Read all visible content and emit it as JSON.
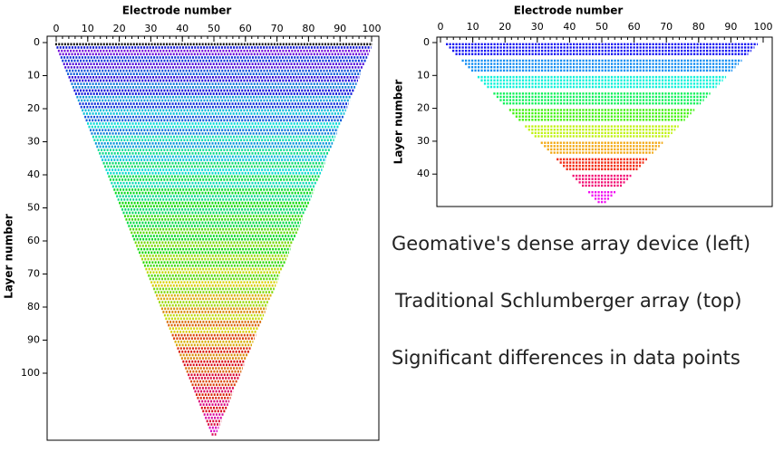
{
  "chart_data": [
    {
      "type": "pseudosection",
      "x_label": "Electrode number",
      "y_label": "Layer number",
      "xlim": [
        0,
        100
      ],
      "ylim": [
        0,
        120
      ],
      "xticks": [
        0,
        10,
        20,
        30,
        40,
        50,
        60,
        70,
        80,
        90,
        100
      ],
      "yticks": [
        0,
        10,
        20,
        30,
        40,
        50,
        60,
        70,
        80,
        90,
        100
      ]
    },
    {
      "type": "pseudosection",
      "x_label": "Electrode number",
      "y_label": "Layer number",
      "xlim": [
        0,
        100
      ],
      "ylim": [
        0,
        50
      ],
      "xticks": [
        0,
        10,
        20,
        30,
        40,
        50,
        60,
        70,
        80,
        90,
        100
      ],
      "yticks": [
        0,
        10,
        20,
        30,
        40
      ]
    }
  ],
  "captions": [
    "Geomative's dense array device (left)",
    "Traditional Schlumberger array (top)",
    "Significant differences in data points"
  ]
}
